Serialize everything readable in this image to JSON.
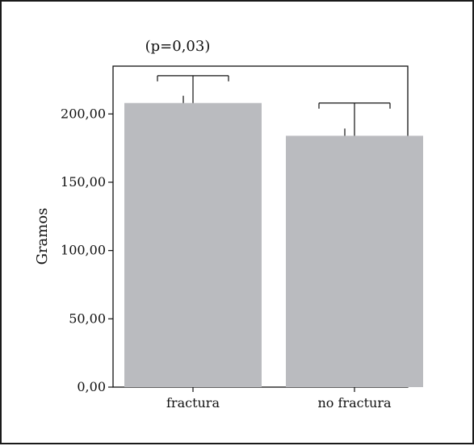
{
  "chart_data": {
    "type": "bar",
    "categories": [
      "fractura",
      "no fractura"
    ],
    "values": [
      208,
      184
    ],
    "error_upper": [
      228,
      208
    ],
    "ylabel": "Gramos",
    "ylim": [
      0,
      235
    ],
    "yticks": [
      0,
      50,
      100,
      150,
      200
    ],
    "ytick_labels": [
      "0,00",
      "50,00",
      "100,00",
      "150,00",
      "200,00"
    ],
    "annotation": "(p=0,03)",
    "bar_color": "#babbbf",
    "grid": false,
    "legend": "none"
  }
}
